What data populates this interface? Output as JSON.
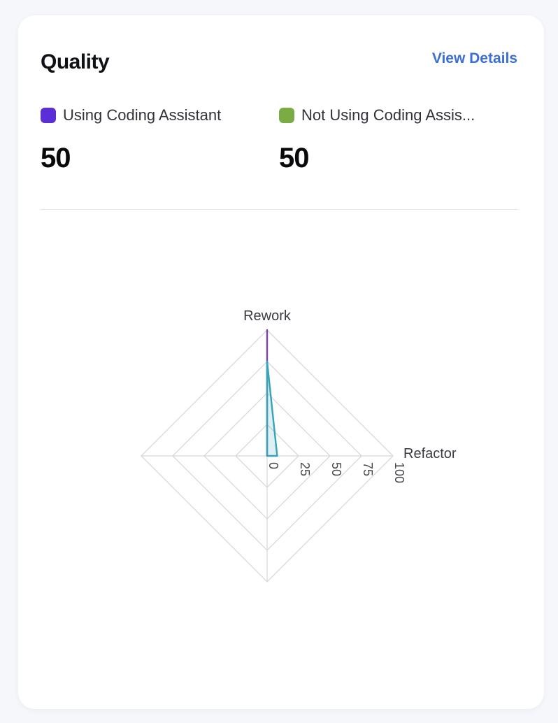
{
  "card": {
    "title": "Quality",
    "view_details_label": "View Details"
  },
  "legend": {
    "items": [
      {
        "label": "Using Coding Assistant",
        "value": "50",
        "swatch_color": "#5b2fd6"
      },
      {
        "label": "Not Using Coding Assis...",
        "value": "50",
        "swatch_color": "#7bac43"
      }
    ]
  },
  "chart_data": {
    "type": "radar",
    "title": "Quality radar",
    "axes": [
      "Rework",
      "Refactor",
      "",
      ""
    ],
    "max": 100,
    "ring_values": [
      0,
      25,
      50,
      75,
      100
    ],
    "grid_color": "#d8d8d8",
    "tick_label_color": "#46464c",
    "axis_name_color": "#3a3a40",
    "series": [
      {
        "name": "Using Coding Assistant",
        "color": "#7c41ae",
        "fill_opacity": 0,
        "values": [
          100,
          0,
          0,
          0
        ]
      },
      {
        "name": "Not Using Coding Assistant",
        "color": "#35a3b8",
        "fill_opacity": 0.16,
        "values": [
          75,
          8,
          0,
          0
        ]
      }
    ]
  }
}
